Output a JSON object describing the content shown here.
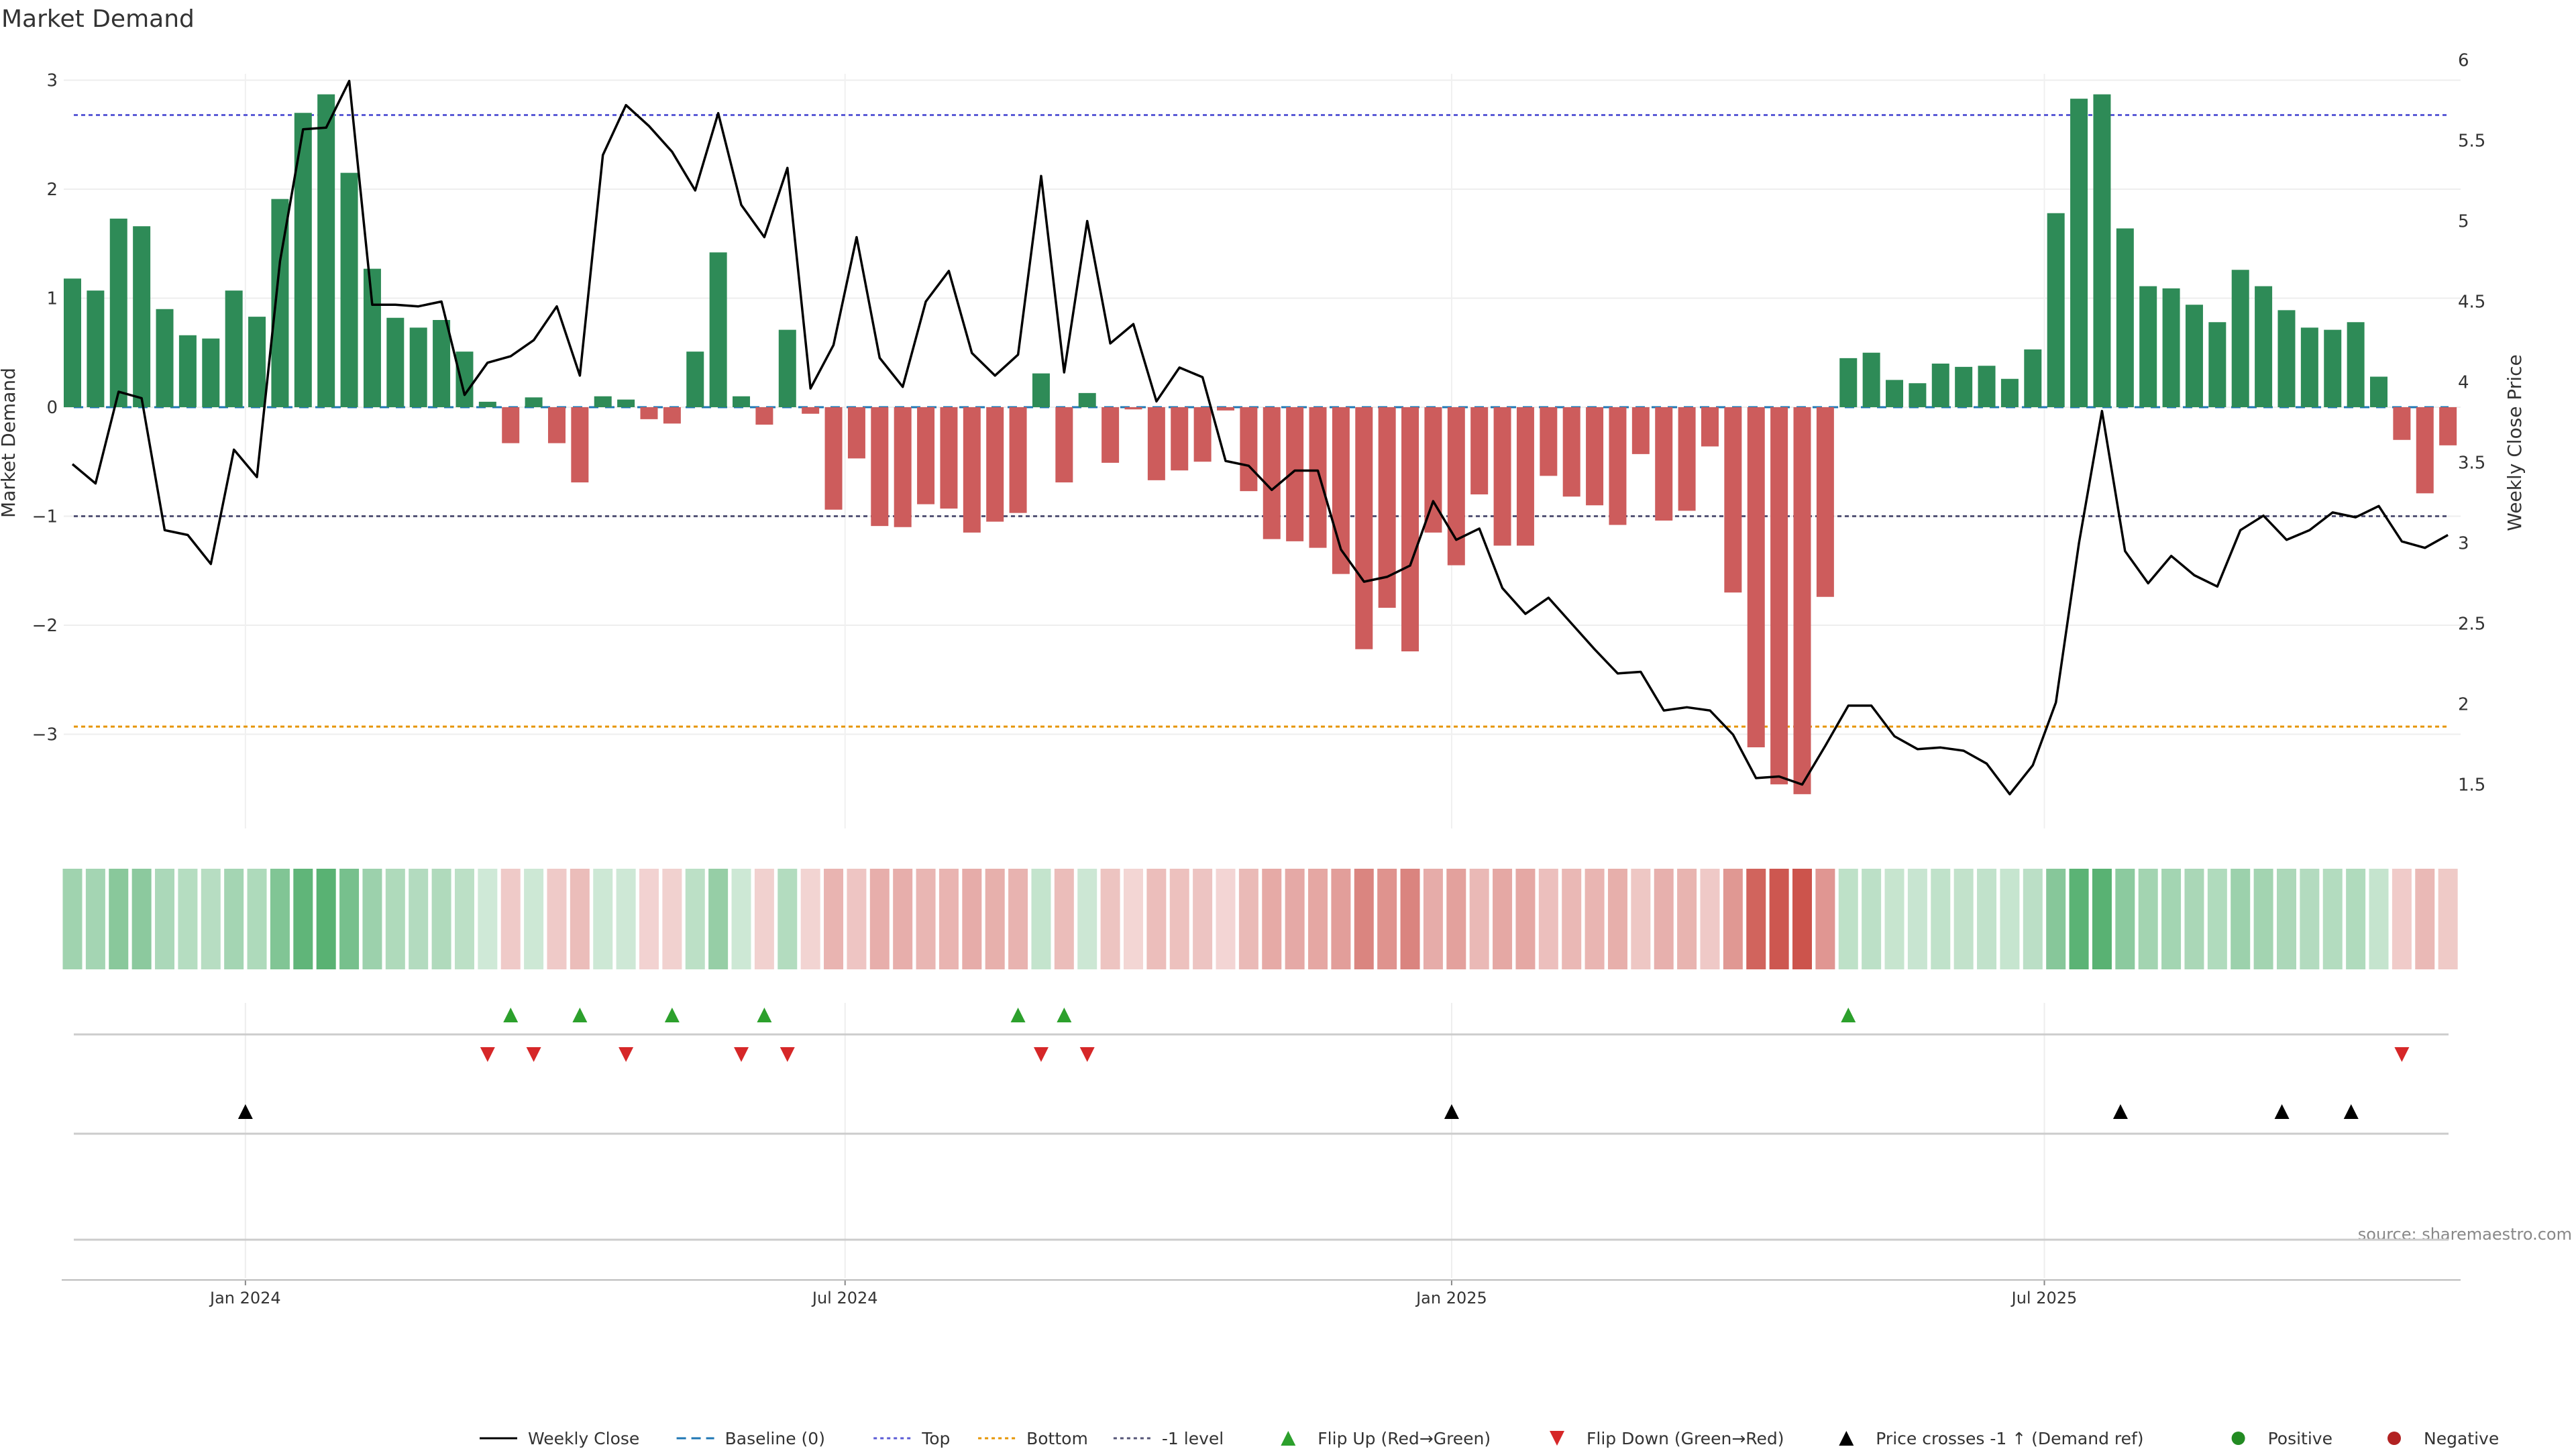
{
  "title": "Market Demand",
  "source": "source: sharemaestro.com",
  "colors": {
    "positive_bar": "#2e8b57",
    "negative_bar": "#cd5c5c",
    "price_line": "#000000",
    "baseline": "#1f77b4",
    "top_line": "#5b5bd6",
    "bottom_line": "#e69500",
    "minus1_line": "#555577",
    "flip_up": "#2ca02c",
    "flip_down": "#d62728",
    "cross_marker": "#000000",
    "heat_positive": "#2e9e4f",
    "heat_negative": "#c8473f",
    "positive_dot": "#228b22",
    "negative_dot": "#b22222"
  },
  "chart_data": {
    "type": "bar",
    "title": "Market Demand",
    "ylabel": "Market Demand",
    "ylabel_right": "Weekly Close Price",
    "ylim": [
      -3.9,
      3.1
    ],
    "ylim_right": [
      1.05,
      6.1
    ],
    "yticks": [
      3,
      2,
      1,
      0,
      -1,
      -2,
      -3
    ],
    "yticks_right": [
      6,
      5.5,
      5,
      4.5,
      4,
      3.5,
      3,
      2.5,
      2,
      1.5
    ],
    "xtick_labels": [
      {
        "label": "Jan 2024",
        "week": 7.5
      },
      {
        "label": "Jul 2024",
        "week": 33.5
      },
      {
        "label": "Jan 2025",
        "week": 59.8
      },
      {
        "label": "Jul 2025",
        "week": 85.5
      }
    ],
    "reference_lines": {
      "baseline": 0,
      "top": 2.68,
      "bottom": -2.93,
      "minus1": -1
    },
    "series": [
      {
        "name": "Market Demand",
        "values": [
          1.18,
          1.07,
          1.73,
          1.66,
          0.9,
          0.66,
          0.63,
          1.07,
          0.83,
          1.91,
          2.7,
          2.87,
          2.15,
          1.27,
          0.82,
          0.73,
          0.8,
          0.51,
          0.05,
          -0.33,
          0.09,
          -0.33,
          -0.69,
          0.1,
          0.07,
          -0.11,
          -0.15,
          0.51,
          1.42,
          0.1,
          -0.16,
          0.71,
          -0.06,
          -0.94,
          -0.47,
          -1.09,
          -1.1,
          -0.89,
          -0.93,
          -1.15,
          -1.05,
          -0.97,
          0.31,
          -0.69,
          0.13,
          -0.51,
          -0.02,
          -0.67,
          -0.58,
          -0.5,
          -0.03,
          -0.77,
          -1.21,
          -1.23,
          -1.29,
          -1.53,
          -2.22,
          -1.84,
          -2.24,
          -1.15,
          -1.45,
          -0.8,
          -1.27,
          -1.27,
          -0.63,
          -0.82,
          -0.9,
          -1.08,
          -0.43,
          -1.04,
          -0.95,
          -0.36,
          -1.7,
          -3.12,
          -3.46,
          -3.55,
          -1.74,
          0.45,
          0.5,
          0.25,
          0.22,
          0.4,
          0.37,
          0.38,
          0.26,
          0.53,
          1.78,
          2.83,
          2.87,
          1.64,
          1.11,
          1.09,
          0.94,
          0.78,
          1.26,
          1.11,
          0.89,
          0.73,
          0.71,
          0.78,
          0.28,
          -0.3,
          -0.79,
          -0.35
        ]
      },
      {
        "name": "Weekly Close",
        "axis": "right",
        "values": [
          3.49,
          3.37,
          3.94,
          3.9,
          3.08,
          3.05,
          2.87,
          3.58,
          3.41,
          4.75,
          5.57,
          5.58,
          5.87,
          4.48,
          4.48,
          4.47,
          4.5,
          3.92,
          4.12,
          4.16,
          4.26,
          4.47,
          4.04,
          5.41,
          5.72,
          5.59,
          5.43,
          5.19,
          5.67,
          5.1,
          4.9,
          5.33,
          3.96,
          4.23,
          4.9,
          4.15,
          3.97,
          4.5,
          4.69,
          4.18,
          4.04,
          4.17,
          5.28,
          4.06,
          5.0,
          4.24,
          4.36,
          3.88,
          4.09,
          4.03,
          3.51,
          3.48,
          3.33,
          3.45,
          3.45,
          2.96,
          2.76,
          2.79,
          2.86,
          3.26,
          3.02,
          3.09,
          2.72,
          2.56,
          2.66,
          2.5,
          2.34,
          2.19,
          2.2,
          1.96,
          1.98,
          1.96,
          1.81,
          1.54,
          1.55,
          1.5,
          1.74,
          1.99,
          1.99,
          1.8,
          1.72,
          1.73,
          1.71,
          1.63,
          1.44,
          1.62,
          2.01,
          3.0,
          3.82,
          2.95,
          2.75,
          2.92,
          2.8,
          2.73,
          3.08,
          3.17,
          3.02,
          3.08,
          3.19,
          3.16,
          3.23,
          3.01,
          2.97,
          3.05
        ]
      }
    ],
    "markers": {
      "flip_up_weeks": [
        19,
        22,
        26,
        30,
        41,
        43,
        77
      ],
      "flip_down_weeks": [
        18,
        20,
        24,
        29,
        31,
        42,
        44,
        101
      ],
      "price_crosses_weeks": [
        7.5,
        59.8,
        88.8,
        95.8,
        98.8
      ]
    }
  },
  "legend": [
    {
      "label": "Weekly Close",
      "kind": "line",
      "color": "#000000"
    },
    {
      "label": "Baseline (0)",
      "kind": "dash",
      "color": "#1f77b4"
    },
    {
      "label": "Top",
      "kind": "dot",
      "color": "#5b5bd6"
    },
    {
      "label": "Bottom",
      "kind": "dot",
      "color": "#e69500"
    },
    {
      "label": "-1 level",
      "kind": "dot",
      "color": "#555577"
    },
    {
      "label": "Flip Up (Red→Green)",
      "kind": "tri-up",
      "color": "#2ca02c"
    },
    {
      "label": "Flip Down (Green→Red)",
      "kind": "tri-down",
      "color": "#d62728"
    },
    {
      "label": "Price crosses -1 ↑ (Demand ref)",
      "kind": "tri-up",
      "color": "#000000"
    },
    {
      "label": "Positive",
      "kind": "circle",
      "color": "#228b22"
    },
    {
      "label": "Negative",
      "kind": "circle",
      "color": "#b22222"
    }
  ]
}
